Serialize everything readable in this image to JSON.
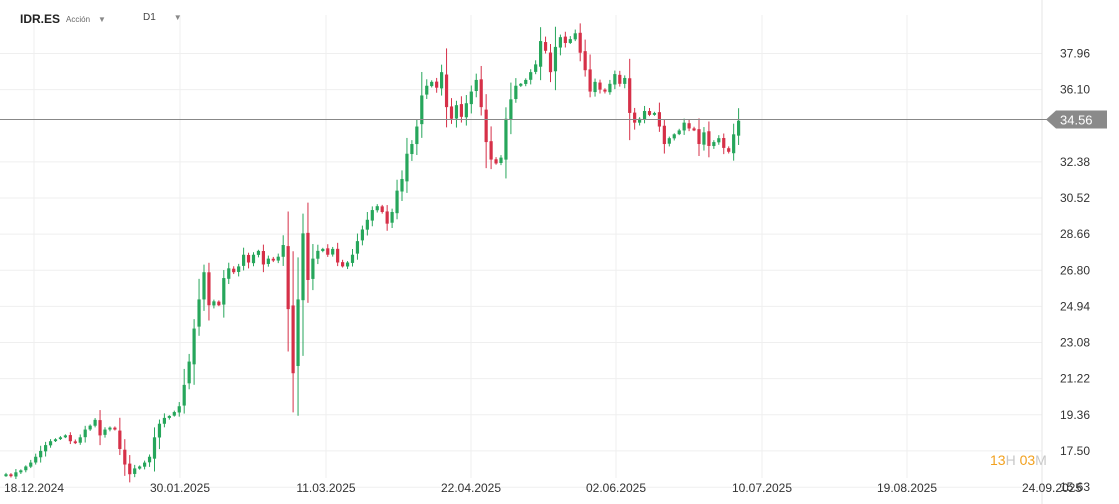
{
  "header": {
    "symbol": "IDR.ES",
    "instrument_type": "Acción",
    "timeframe": "D1"
  },
  "countdown": {
    "hours": "13",
    "hours_unit": "H",
    "minutes": "03",
    "minutes_unit": "M"
  },
  "colors": {
    "up": "#26a65b",
    "down": "#d63048",
    "current_line": "#888888",
    "price_tag_bg": "#8a8a8a",
    "grid": "#efefef"
  },
  "chart_data": {
    "type": "candlestick",
    "title": "",
    "xlabel": "",
    "ylabel": "",
    "current_price": 34.56,
    "ylim": [
      15.5,
      40.0
    ],
    "y_ticks": [
      37.96,
      36.1,
      32.38,
      30.52,
      28.66,
      26.8,
      24.94,
      23.08,
      21.22,
      19.36,
      17.5,
      15.63
    ],
    "x_ticks": [
      "18.12.2024",
      "30.01.2025",
      "11.03.2025",
      "22.04.2025",
      "02.06.2025",
      "10.07.2025",
      "19.08.2025",
      "24.09.2025"
    ],
    "grid": true,
    "closes": [
      16.3,
      16.2,
      16.4,
      16.5,
      16.7,
      16.9,
      17.2,
      17.5,
      17.8,
      18.0,
      18.1,
      18.2,
      18.3,
      18.0,
      17.9,
      18.2,
      18.6,
      18.8,
      19.1,
      18.3,
      18.6,
      18.7,
      18.6,
      17.6,
      16.8,
      16.3,
      16.6,
      16.7,
      16.9,
      17.2,
      18.2,
      18.9,
      19.2,
      19.3,
      19.5,
      19.8,
      20.9,
      22.1,
      23.8,
      25.3,
      26.7,
      25.0,
      25.2,
      25.0,
      26.4,
      26.9,
      26.7,
      27.0,
      27.6,
      27.2,
      27.6,
      27.8,
      27.1,
      27.4,
      27.3,
      27.5,
      28.1,
      24.8,
      21.5,
      25.3,
      28.7,
      26.3,
      27.4,
      27.8,
      27.9,
      27.6,
      27.9,
      27.2,
      27.0,
      27.2,
      27.6,
      28.3,
      28.9,
      29.4,
      29.9,
      30.1,
      29.8,
      29.2,
      29.8,
      30.9,
      31.5,
      32.8,
      33.3,
      34.2,
      35.8,
      36.3,
      36.5,
      36.2,
      37.0,
      35.2,
      34.6,
      35.3,
      34.7,
      35.4,
      36.0,
      36.6,
      35.2,
      33.4,
      32.5,
      32.3,
      32.6,
      34.6,
      35.6,
      36.3,
      36.4,
      36.6,
      37.0,
      37.4,
      38.6,
      38.1,
      37.0,
      38.3,
      38.8,
      38.5,
      38.7,
      39.0,
      38.0,
      37.1,
      36.0,
      36.5,
      36.1,
      36.0,
      36.4,
      36.9,
      36.4,
      36.7,
      34.9,
      34.4,
      34.6,
      35.0,
      34.8,
      34.9,
      34.2,
      33.3,
      33.6,
      33.8,
      34.0,
      34.4,
      34.1,
      34.0,
      33.3,
      33.9,
      33.2,
      33.4,
      33.6,
      33.1,
      32.9,
      33.8,
      34.5
    ]
  }
}
